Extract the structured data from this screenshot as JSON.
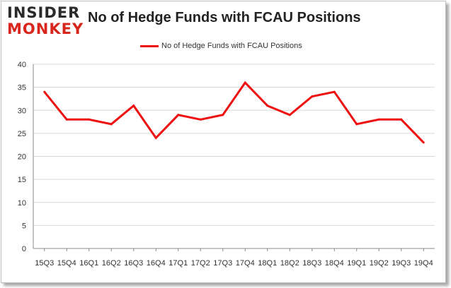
{
  "logo": {
    "line1": "INSIDER",
    "line2": "MONKEY"
  },
  "colors": {
    "series": "#ee1111",
    "grid": "#d9d9d9",
    "axis": "#888888",
    "logo_dark": "#2a2a2a",
    "logo_red": "#d9261c"
  },
  "chart_data": {
    "type": "line",
    "title": "No of Hedge Funds with FCAU Positions",
    "categories": [
      "15Q3",
      "15Q4",
      "16Q1",
      "16Q2",
      "16Q3",
      "16Q4",
      "17Q1",
      "17Q2",
      "17Q3",
      "17Q4",
      "18Q1",
      "18Q2",
      "18Q3",
      "18Q4",
      "19Q1",
      "19Q2",
      "19Q3",
      "19Q4"
    ],
    "series": [
      {
        "name": "No of Hedge Funds with FCAU Positions",
        "values": [
          34,
          28,
          28,
          27,
          31,
          24,
          29,
          28,
          29,
          36,
          31,
          29,
          33,
          34,
          27,
          28,
          28,
          23
        ]
      }
    ],
    "ylim": [
      0,
      40
    ],
    "yticks": [
      0,
      5,
      10,
      15,
      20,
      25,
      30,
      35,
      40
    ],
    "grid": true,
    "legend_position": "top-center"
  }
}
